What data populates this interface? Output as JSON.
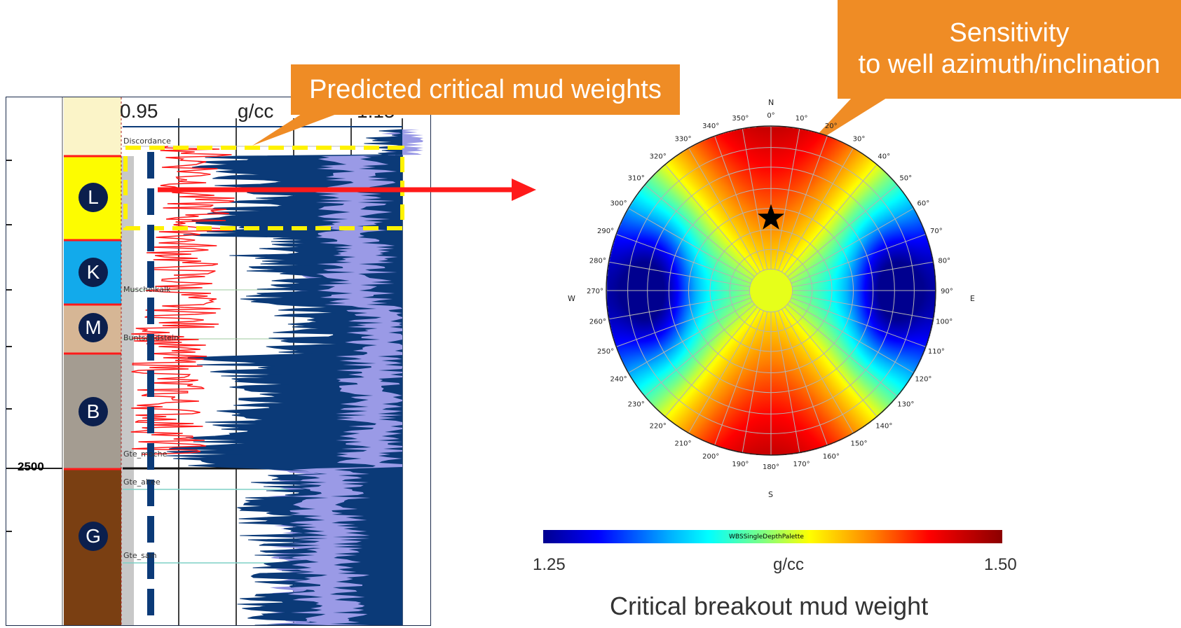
{
  "log_panel": {
    "depth_label": "2500",
    "scale": {
      "min": "0.95",
      "unit": "g/cc",
      "max": "1.15"
    },
    "units": [
      {
        "letter": "L",
        "color": "#fdfc00"
      },
      {
        "letter": "K",
        "color": "#12aaeb"
      },
      {
        "letter": "M",
        "color": "#d6b695"
      },
      {
        "letter": "B",
        "color": "#a49c91"
      },
      {
        "letter": "G",
        "color": "#7a3f12"
      }
    ],
    "formations": [
      "Discordance",
      "Muschelkalk",
      "Buntsandstein",
      "Gte_moche",
      "Gte_altee",
      "Gte_sain"
    ]
  },
  "callouts": {
    "predicted": "Predicted critical mud weights",
    "sensitivity_line1": "Sensitivity",
    "sensitivity_line2": "to well azimuth/inclination"
  },
  "polar": {
    "compass": {
      "n": "N",
      "s": "S",
      "e": "E",
      "w": "W"
    },
    "azimuth_labels": [
      "0°",
      "10°",
      "20°",
      "30°",
      "40°",
      "50°",
      "60°",
      "70°",
      "80°",
      "90°",
      "100°",
      "110°",
      "120°",
      "130°",
      "140°",
      "150°",
      "160°",
      "170°",
      "180°",
      "190°",
      "200°",
      "210°",
      "220°",
      "230°",
      "240°",
      "250°",
      "260°",
      "270°",
      "280°",
      "290°",
      "300°",
      "310°",
      "320°",
      "330°",
      "340°",
      "350°"
    ]
  },
  "colorbar": {
    "title": "WBSSingleDepthPalette",
    "min": "1.25",
    "unit": "g/cc",
    "max": "1.50",
    "caption": "Critical breakout mud weight"
  },
  "colors": {
    "callout": "#ef8c25",
    "navy": "#0b3a78",
    "red": "#ff1a1a",
    "dashed_yellow": "#fff200"
  }
}
